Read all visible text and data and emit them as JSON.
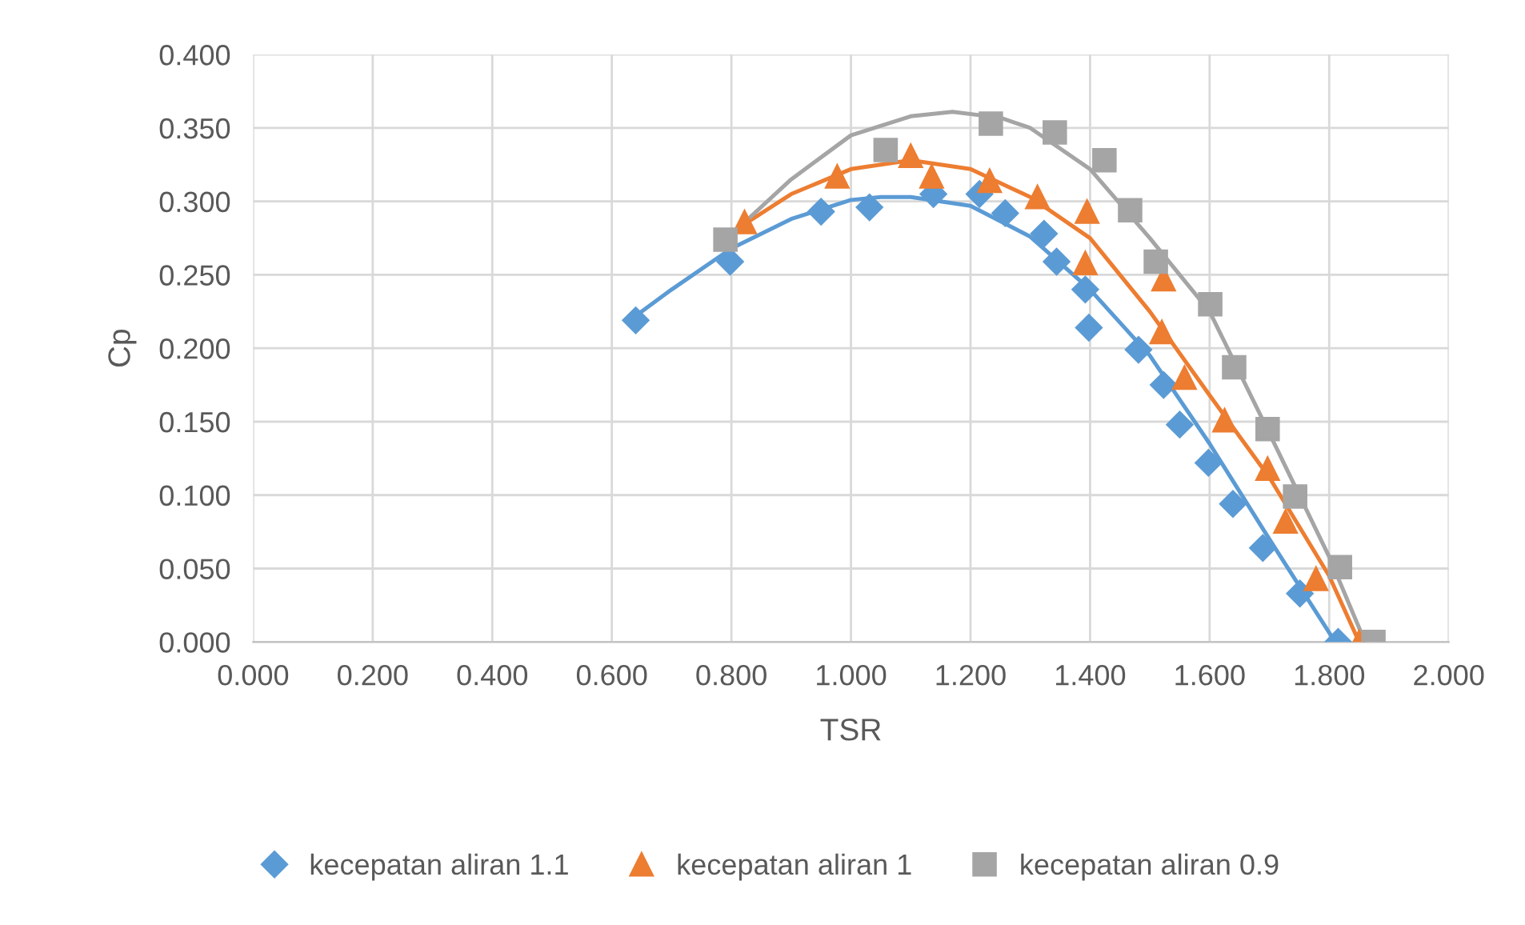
{
  "chart_data": {
    "type": "scatter",
    "xlabel": "TSR",
    "ylabel": "Cp",
    "xlim": [
      0,
      2
    ],
    "xticks": [
      {
        "value": 0,
        "label": "0.000"
      },
      {
        "value": 0.2,
        "label": "0.200"
      },
      {
        "value": 0.4,
        "label": "0.400"
      },
      {
        "value": 0.6,
        "label": "0.600"
      },
      {
        "value": 0.8,
        "label": "0.800"
      },
      {
        "value": 1.0,
        "label": "1.000"
      },
      {
        "value": 1.2,
        "label": "1.200"
      },
      {
        "value": 1.4,
        "label": "1.400"
      },
      {
        "value": 1.6,
        "label": "1.600"
      },
      {
        "value": 1.8,
        "label": "1.800"
      },
      {
        "value": 2.0,
        "label": "2.000"
      }
    ],
    "ylim": [
      0,
      0.4
    ],
    "yticks": [
      {
        "value": 0,
        "label": "0.000"
      },
      {
        "value": 0.05,
        "label": "0.050"
      },
      {
        "value": 0.1,
        "label": "0.100"
      },
      {
        "value": 0.15,
        "label": "0.150"
      },
      {
        "value": 0.2,
        "label": "0.200"
      },
      {
        "value": 0.25,
        "label": "0.250"
      },
      {
        "value": 0.3,
        "label": "0.300"
      },
      {
        "value": 0.35,
        "label": "0.350"
      },
      {
        "value": 0.4,
        "label": "0.400"
      }
    ],
    "grid": true,
    "legend": "bottom",
    "series": [
      {
        "name": "kecepatan aliran 1.1",
        "color": "#5b9bd5",
        "marker": "diamond",
        "x": [
          0.64,
          0.798,
          0.95,
          1.031,
          1.138,
          1.215,
          1.258,
          1.323,
          1.344,
          1.392,
          1.398,
          1.481,
          1.523,
          1.55,
          1.598,
          1.639,
          1.689,
          1.751,
          1.815
        ],
        "values": [
          0.219,
          0.259,
          0.293,
          0.296,
          0.305,
          0.305,
          0.292,
          0.278,
          0.259,
          0.24,
          0.214,
          0.199,
          0.175,
          0.148,
          0.122,
          0.094,
          0.064,
          0.033,
          0.0
        ]
      },
      {
        "name": "kecepatan aliran 1",
        "color": "#ed7d31",
        "marker": "triangle",
        "x": [
          0.822,
          0.977,
          1.1,
          1.135,
          1.232,
          1.312,
          1.395,
          1.392,
          1.523,
          1.52,
          1.558,
          1.625,
          1.697,
          1.727,
          1.778,
          1.85
        ],
        "values": [
          0.286,
          0.317,
          0.331,
          0.317,
          0.314,
          0.303,
          0.293,
          0.258,
          0.247,
          0.211,
          0.18,
          0.151,
          0.118,
          0.082,
          0.043,
          0.0
        ]
      },
      {
        "name": "kecepatan aliran 0.9",
        "color": "#a5a5a5",
        "marker": "square",
        "x": [
          0.79,
          1.058,
          1.234,
          1.341,
          1.424,
          1.467,
          1.51,
          1.601,
          1.641,
          1.697,
          1.743,
          1.818,
          1.874
        ],
        "values": [
          0.274,
          0.335,
          0.353,
          0.347,
          0.328,
          0.294,
          0.259,
          0.23,
          0.187,
          0.145,
          0.099,
          0.051,
          0.0
        ]
      },
      {
        "type": "line",
        "color": "#5b9bd5",
        "marker": "none",
        "x": [
          0.64,
          0.7,
          0.8,
          0.9,
          1.0,
          1.05,
          1.1,
          1.2,
          1.3,
          1.4,
          1.5,
          1.6,
          1.7,
          1.81
        ],
        "values": [
          0.222,
          0.24,
          0.268,
          0.288,
          0.301,
          0.303,
          0.303,
          0.297,
          0.276,
          0.24,
          0.195,
          0.135,
          0.07,
          0.0
        ]
      },
      {
        "type": "line",
        "color": "#ed7d31",
        "marker": "none",
        "x": [
          0.82,
          0.9,
          1.0,
          1.1,
          1.2,
          1.3,
          1.4,
          1.5,
          1.6,
          1.7,
          1.8,
          1.85
        ],
        "values": [
          0.284,
          0.305,
          0.322,
          0.328,
          0.322,
          0.303,
          0.275,
          0.225,
          0.168,
          0.112,
          0.045,
          0.0
        ]
      },
      {
        "type": "line",
        "color": "#a5a5a5",
        "marker": "none",
        "x": [
          0.82,
          0.9,
          1.0,
          1.1,
          1.17,
          1.25,
          1.3,
          1.4,
          1.5,
          1.6,
          1.7,
          1.8,
          1.86
        ],
        "values": [
          0.285,
          0.315,
          0.345,
          0.358,
          0.361,
          0.357,
          0.35,
          0.322,
          0.275,
          0.225,
          0.142,
          0.058,
          0.0
        ]
      }
    ]
  }
}
